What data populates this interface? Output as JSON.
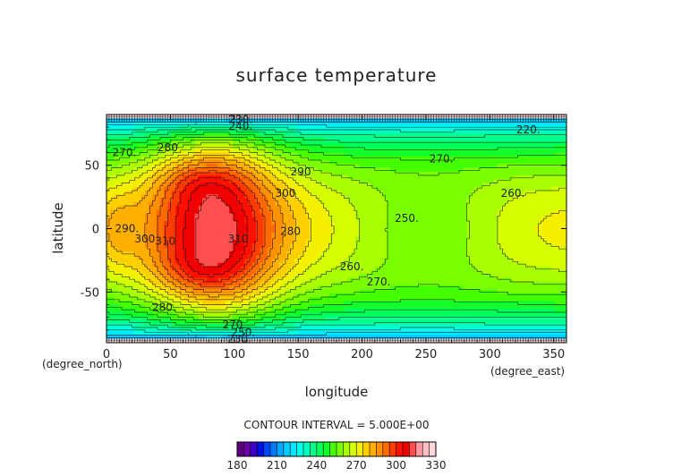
{
  "chart_data": {
    "type": "heatmap",
    "title": "surface temperature",
    "xlabel": "longitude",
    "ylabel": "latitude",
    "x_unit": "(degree_east)",
    "y_unit": "(degree_north)",
    "xlim": [
      0,
      360
    ],
    "ylim": [
      -90,
      90
    ],
    "x_ticks": [
      0,
      50,
      100,
      150,
      200,
      250,
      300,
      350
    ],
    "y_ticks": [
      -50,
      0,
      50
    ],
    "contour_interval_label": "CONTOUR INTERVAL = 5.000E+00",
    "color_levels": [
      180,
      185,
      190,
      195,
      200,
      205,
      210,
      215,
      220,
      225,
      230,
      235,
      240,
      245,
      250,
      255,
      260,
      265,
      270,
      275,
      280,
      285,
      290,
      295,
      300,
      305,
      310,
      315,
      320,
      325,
      330
    ],
    "colorbar_tick_values": [
      180,
      210,
      240,
      270,
      300,
      330
    ],
    "contour_labels": [
      {
        "text": "230.",
        "lon": 105,
        "lat": 86
      },
      {
        "text": "240.",
        "lon": 105,
        "lat": 81
      },
      {
        "text": "220.",
        "lon": 330,
        "lat": 78
      },
      {
        "text": "280",
        "lon": 48,
        "lat": 64
      },
      {
        "text": "270.",
        "lon": 14,
        "lat": 60
      },
      {
        "text": "270.",
        "lon": 262,
        "lat": 55
      },
      {
        "text": "290",
        "lon": 152,
        "lat": 45
      },
      {
        "text": "300",
        "lon": 140,
        "lat": 28
      },
      {
        "text": "260.",
        "lon": 318,
        "lat": 28
      },
      {
        "text": "280",
        "lon": 144,
        "lat": -2
      },
      {
        "text": "250.",
        "lon": 235,
        "lat": 8
      },
      {
        "text": "290.",
        "lon": 16,
        "lat": 0
      },
      {
        "text": "300",
        "lon": 30,
        "lat": -8
      },
      {
        "text": "310",
        "lon": 46,
        "lat": -10
      },
      {
        "text": "310",
        "lon": 103,
        "lat": -8
      },
      {
        "text": "260.",
        "lon": 192,
        "lat": -30
      },
      {
        "text": "270.",
        "lon": 213,
        "lat": -42
      },
      {
        "text": "280.",
        "lon": 45,
        "lat": -62
      },
      {
        "text": "270.",
        "lon": 100,
        "lat": -76
      },
      {
        "text": "250.",
        "lon": 107,
        "lat": -82
      },
      {
        "text": "230.",
        "lon": 104,
        "lat": -87
      }
    ],
    "grid": false
  }
}
